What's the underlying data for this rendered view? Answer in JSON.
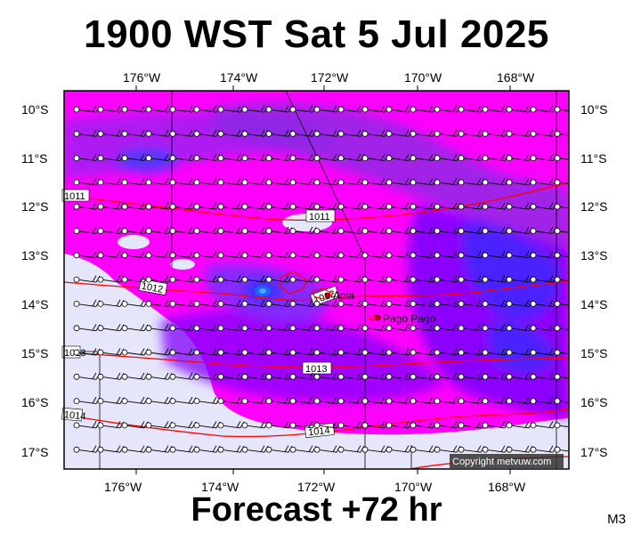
{
  "title": "1900 WST Sat 5 Jul 2025",
  "footer": "Forecast +72 hr",
  "model_code": "M3",
  "copyright": "Copyright metvuw.com",
  "longitude_labels": [
    "176°W",
    "174°W",
    "172°W",
    "170°W",
    "168°W"
  ],
  "latitude_labels": [
    "10°S",
    "11°S",
    "12°S",
    "13°S",
    "14°S",
    "15°S",
    "16°S",
    "17°S"
  ],
  "places": [
    {
      "name": "Apia",
      "icon": "city-dot-icon"
    },
    {
      "name": "Pago Pago",
      "icon": "city-dot-icon"
    }
  ],
  "isobar_labels": [
    "1011",
    "1011",
    "1012",
    "1012",
    "1013",
    "1013",
    "1014",
    "1014"
  ],
  "colors": {
    "magenta": "#ff00ff",
    "violet": "#a020f0",
    "purple": "#8000ff",
    "blue": "#4b3cff",
    "deep_blue": "#1e1eff",
    "pale": "#e6e6fa",
    "isobar": "#ff0000"
  }
}
